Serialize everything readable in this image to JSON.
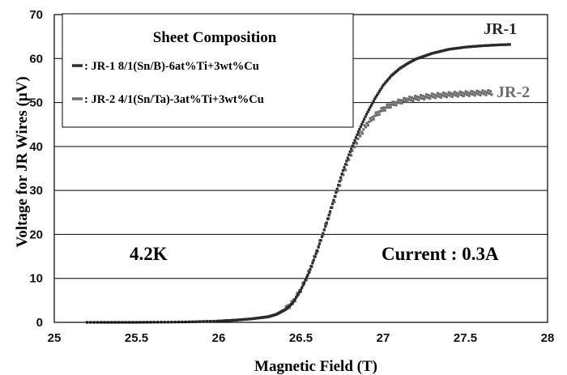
{
  "chart_data": {
    "type": "scatter",
    "xlabel": "Magnetic Field (T)",
    "ylabel": "Voltage for JR Wires (μV)",
    "xlim": [
      25,
      28
    ],
    "ylim": [
      0,
      70
    ],
    "x_ticks": [
      "25",
      "25.5",
      "26",
      "26.5",
      "27",
      "27.5",
      "28"
    ],
    "y_ticks": [
      "0",
      "10",
      "20",
      "30",
      "40",
      "50",
      "60",
      "70"
    ],
    "grid": "horizontal",
    "legend": {
      "title": "Sheet Composition",
      "position": "top-left",
      "entries": [
        ": JR-1  8/1(Sn/B)-6at%Ti+3wt%Cu",
        ": JR-2  4/1(Sn/Ta)-3at%Ti+3wt%Cu"
      ]
    },
    "annotations": [
      "4.2K",
      "Current : 0.3A"
    ],
    "series": [
      {
        "name": "JR-1",
        "color": "#2b2b2b",
        "x": [
          25.2,
          25.5,
          25.8,
          26.0,
          26.1,
          26.2,
          26.3,
          26.35,
          26.4,
          26.45,
          26.5,
          26.55,
          26.6,
          26.65,
          26.7,
          26.75,
          26.8,
          26.85,
          26.9,
          26.95,
          27.0,
          27.05,
          27.1,
          27.15,
          27.2,
          27.3,
          27.4,
          27.5,
          27.6,
          27.7,
          27.77
        ],
        "values": [
          0,
          0,
          0.1,
          0.3,
          0.5,
          0.8,
          1.3,
          1.8,
          2.8,
          4.5,
          7.5,
          11.5,
          16.5,
          22,
          28,
          34,
          39,
          43.5,
          47.5,
          51,
          54,
          56.2,
          57.8,
          59,
          60,
          61.3,
          62.2,
          62.7,
          63,
          63.2,
          63.3
        ]
      },
      {
        "name": "JR-2",
        "color": "#6e6e6e",
        "x": [
          25.2,
          25.5,
          25.8,
          26.0,
          26.1,
          26.2,
          26.3,
          26.35,
          26.4,
          26.45,
          26.5,
          26.55,
          26.6,
          26.65,
          26.7,
          26.75,
          26.8,
          26.85,
          26.9,
          26.95,
          27.0,
          27.05,
          27.1,
          27.15,
          27.2,
          27.3,
          27.4,
          27.5,
          27.6,
          27.66
        ],
        "values": [
          0,
          0,
          0.1,
          0.3,
          0.5,
          0.8,
          1.2,
          1.8,
          2.8,
          4.5,
          7.5,
          11.5,
          16.5,
          22,
          27.5,
          33,
          38,
          42,
          45,
          47,
          48.5,
          49.5,
          50.2,
          50.7,
          51,
          51.5,
          51.8,
          52,
          52.2,
          52.3
        ]
      }
    ]
  }
}
